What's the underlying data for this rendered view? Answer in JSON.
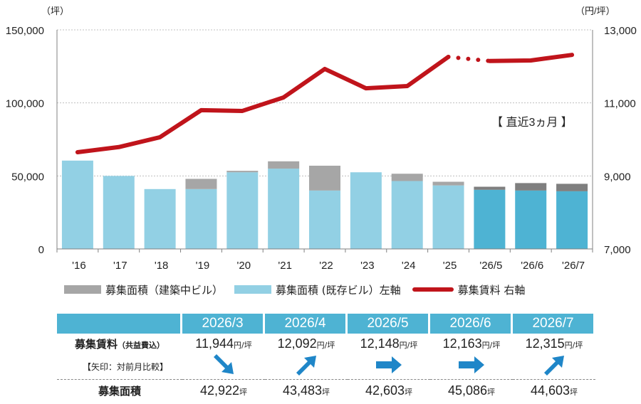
{
  "chart_data": {
    "type": "bar+line",
    "categories": [
      "'16",
      "'17",
      "'18",
      "'19",
      "'20",
      "'21",
      "'22",
      "'23",
      "'24",
      "'25",
      "'26/5",
      "'26/6",
      "'26/7"
    ],
    "series": [
      {
        "name": "募集面積（既存ビル）左軸",
        "type": "bar",
        "axis": "left",
        "values": [
          60500,
          50000,
          41000,
          41000,
          52500,
          55000,
          40000,
          52500,
          46500,
          43500,
          40500,
          40000,
          39500
        ],
        "color": "#92d0e4"
      },
      {
        "name": "募集面積（建築中ビル）",
        "type": "bar",
        "axis": "left",
        "values": [
          0,
          0,
          0,
          7000,
          1000,
          5000,
          17000,
          0,
          5000,
          2500,
          2100,
          5100,
          5100
        ],
        "color": "#a6a6a6"
      },
      {
        "name": "募集賃料 右軸",
        "type": "line",
        "axis": "right",
        "values": [
          9650,
          9790,
          10060,
          10800,
          10780,
          11150,
          11930,
          11400,
          11460,
          12260,
          12148,
          12163,
          12315
        ],
        "dotted_segment": [
          9,
          10
        ],
        "color": "#c0141b"
      }
    ],
    "left_axis": {
      "unit": "（坪）",
      "ticks": [
        "0",
        "50,000",
        "100,000",
        "150,000"
      ],
      "ylim": [
        0,
        150000
      ]
    },
    "right_axis": {
      "unit": "（円/坪）",
      "ticks": [
        "7,000",
        "9,000",
        "11,000",
        "13,000"
      ],
      "ylim": [
        7000,
        13000
      ]
    },
    "annotation": "【 直近3ヵ月 】",
    "highlight_color": "#4eb3d3"
  },
  "legend": {
    "construction": "募集面積（建築中ビル）",
    "existing": "募集面積 (既存ビル）左軸",
    "rent": "募集賃料 右軸"
  },
  "table": {
    "months": [
      "2026/3",
      "2026/4",
      "2026/5",
      "2026/6",
      "2026/7"
    ],
    "rent_label": "募集賃料",
    "rent_sublabel": "（共益費込）",
    "arrow_label": "【矢印：対前月比較】",
    "rent_values": [
      "11,944",
      "12,092",
      "12,148",
      "12,163",
      "12,315"
    ],
    "rent_unit": "円/坪",
    "arrows": [
      "down",
      "up",
      "flat",
      "flat",
      "up"
    ],
    "area_label": "募集面積",
    "area_values": [
      "42,922",
      "43,483",
      "42,603",
      "45,086",
      "44,603"
    ],
    "area_unit": "坪"
  }
}
